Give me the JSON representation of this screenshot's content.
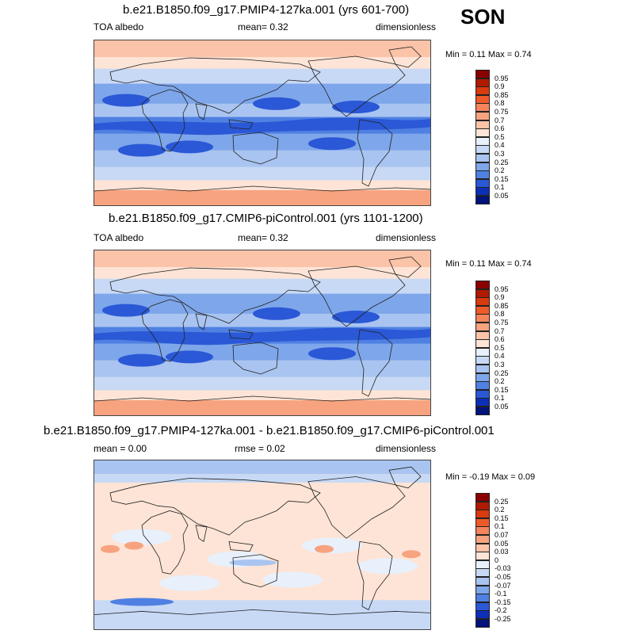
{
  "season": "SON",
  "panels": [
    {
      "title": "b.e21.B1850.f09_g17.PMIP4-127ka.001 (yrs 601-700)",
      "left_label": "TOA albedo",
      "center_label": "mean=   0.32",
      "right_label": "dimensionless",
      "minmax": "Min =  0.11 Max =   0.74",
      "palette": "abs",
      "variant": 0,
      "legend_labels": [
        "0.95",
        "0.9",
        "0.85",
        "0.8",
        "0.75",
        "0.7",
        "0.6",
        "0.5",
        "0.4",
        "0.3",
        "0.25",
        "0.2",
        "0.15",
        "0.1",
        "0.05"
      ]
    },
    {
      "title": "b.e21.B1850.f09_g17.CMIP6-piControl.001 (yrs 1101-1200)",
      "left_label": "TOA albedo",
      "center_label": "mean=   0.32",
      "right_label": "dimensionless",
      "minmax": "Min =  0.11 Max =   0.74",
      "palette": "abs",
      "variant": 1,
      "legend_labels": [
        "0.95",
        "0.9",
        "0.85",
        "0.8",
        "0.75",
        "0.7",
        "0.6",
        "0.5",
        "0.4",
        "0.3",
        "0.25",
        "0.2",
        "0.15",
        "0.1",
        "0.05"
      ]
    },
    {
      "title": "b.e21.B1850.f09_g17.PMIP4-127ka.001 - b.e21.B1850.f09_g17.CMIP6-piControl.001",
      "left_label": "mean =   0.00",
      "center_label": "rmse =   0.02",
      "right_label": "dimensionless",
      "minmax": "Min =  -0.19 Max =   0.09",
      "palette": "diff",
      "variant": 2,
      "legend_labels": [
        "0.25",
        "0.2",
        "0.15",
        "0.1",
        "0.07",
        "0.05",
        "0.03",
        "0",
        "-0.03",
        "-0.05",
        "-0.07",
        "-0.1",
        "-0.15",
        "-0.2",
        "-0.25"
      ]
    }
  ],
  "colors": {
    "abs": [
      "#8b0000",
      "#b01a00",
      "#d93a0e",
      "#ee5a2a",
      "#f4845c",
      "#f8a37f",
      "#fbc3a8",
      "#fde4d6",
      "#e8f0fb",
      "#c7d9f5",
      "#a9c4f0",
      "#7ea6ea",
      "#4f80e2",
      "#2a58d6",
      "#0d2fb8",
      "#02137a"
    ],
    "diff": [
      "#8b0000",
      "#b01a00",
      "#d93a0e",
      "#ee5a2a",
      "#f4845c",
      "#f8a37f",
      "#fbc3a8",
      "#fde4d6",
      "#e8f0fb",
      "#c7d9f5",
      "#a9c4f0",
      "#7ea6ea",
      "#4f80e2",
      "#2a58d6",
      "#0d2fb8",
      "#02137a"
    ]
  }
}
